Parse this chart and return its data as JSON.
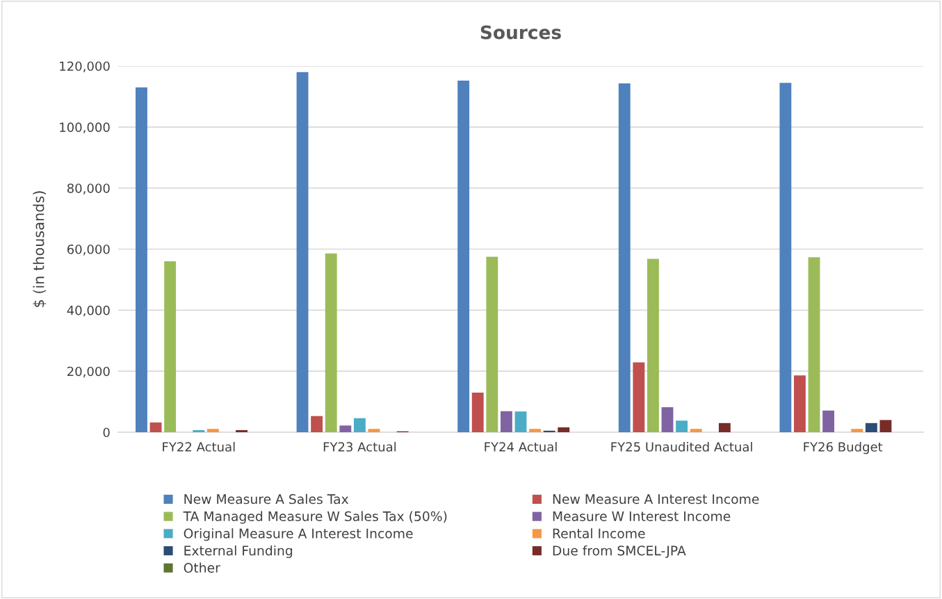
{
  "chart_data": {
    "type": "bar",
    "title": "Sources",
    "ylabel": "$ (in thousands)",
    "categories": [
      "FY22 Actual",
      "FY23 Actual",
      "FY24 Actual",
      "FY25 Unaudited Actual",
      "FY26 Budget"
    ],
    "series": [
      {
        "name": "New Measure A Sales Tax",
        "color": "#4f81bd",
        "values": [
          113000,
          118000,
          115200,
          114300,
          114500
        ]
      },
      {
        "name": "New Measure A Interest Income",
        "color": "#c0504d",
        "values": [
          3200,
          5300,
          13000,
          22900,
          18600
        ]
      },
      {
        "name": "TA Managed Measure W Sales Tax (50%)",
        "color": "#9bbb59",
        "values": [
          56000,
          58600,
          57500,
          56800,
          57300
        ]
      },
      {
        "name": "Measure W Interest Income",
        "color": "#8064a2",
        "values": [
          null,
          2200,
          6900,
          8200,
          7100
        ]
      },
      {
        "name": "Original Measure A Interest Income",
        "color": "#4bacc6",
        "values": [
          700,
          4600,
          6800,
          3800,
          null
        ]
      },
      {
        "name": "Rental Income",
        "color": "#f79646",
        "values": [
          1100,
          1100,
          1100,
          1100,
          1100
        ]
      },
      {
        "name": "External Funding",
        "color": "#2c4d75",
        "values": [
          null,
          null,
          500,
          null,
          3000
        ]
      },
      {
        "name": "Due from SMCEL-JPA",
        "color": "#772c2a",
        "values": [
          700,
          300,
          1600,
          3000,
          4000
        ]
      },
      {
        "name": "Other",
        "color": "#5f7530",
        "values": [
          null,
          null,
          null,
          null,
          null
        ]
      }
    ],
    "ylim": [
      0,
      120000
    ],
    "yticks": [
      {
        "value": 0,
        "label": "0"
      },
      {
        "value": 20000,
        "label": "20,000"
      },
      {
        "value": 40000,
        "label": "40,000"
      },
      {
        "value": 60000,
        "label": "60,000"
      },
      {
        "value": 80000,
        "label": "80,000"
      },
      {
        "value": 100000,
        "label": "100,000"
      },
      {
        "value": 120000,
        "label": "120,000"
      }
    ],
    "grid": "y",
    "legend": "bottom"
  }
}
